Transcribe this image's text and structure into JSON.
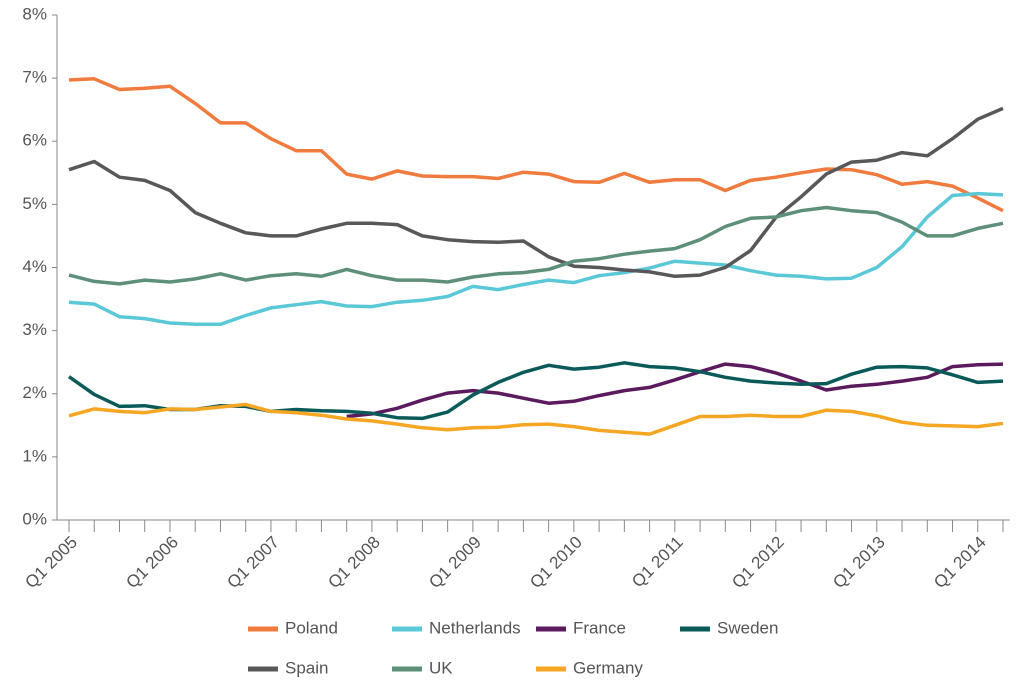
{
  "chart_data": {
    "type": "line",
    "categories": [
      "Q1 2005",
      null,
      null,
      null,
      "Q1 2006",
      null,
      null,
      null,
      "Q1 2007",
      null,
      null,
      null,
      "Q1 2008",
      null,
      null,
      null,
      "Q1 2009",
      null,
      null,
      null,
      "Q1 2010",
      null,
      null,
      null,
      "Q1 2011",
      null,
      null,
      null,
      "Q1 2012",
      null,
      null,
      null,
      "Q1 2013",
      null,
      null,
      null,
      "Q1 2014",
      null
    ],
    "ylim": [
      0,
      8
    ],
    "yticks": [
      {
        "value": 0,
        "label": "0%"
      },
      {
        "value": 1,
        "label": "1%"
      },
      {
        "value": 2,
        "label": "2%"
      },
      {
        "value": 3,
        "label": "3%"
      },
      {
        "value": 4,
        "label": "4%"
      },
      {
        "value": 5,
        "label": "5%"
      },
      {
        "value": 6,
        "label": "6%"
      },
      {
        "value": 7,
        "label": "7%"
      },
      {
        "value": 8,
        "label": "8%"
      }
    ],
    "grid": false,
    "legend": "bottom",
    "series": [
      {
        "name": "Poland",
        "color": "#f07b3f",
        "values": [
          6.97,
          6.99,
          6.82,
          6.84,
          6.87,
          6.6,
          6.29,
          6.29,
          6.04,
          5.85,
          5.85,
          5.48,
          5.4,
          5.53,
          5.45,
          5.44,
          5.44,
          5.41,
          5.51,
          5.48,
          5.36,
          5.35,
          5.49,
          5.35,
          5.39,
          5.39,
          5.22,
          5.38,
          5.43,
          5.5,
          5.56,
          5.55,
          5.47,
          5.32,
          5.36,
          5.29,
          5.1,
          4.9
        ]
      },
      {
        "name": "Netherlands",
        "color": "#5bc8d8",
        "values": [
          3.45,
          3.42,
          3.22,
          3.19,
          3.12,
          3.1,
          3.1,
          3.24,
          3.36,
          3.41,
          3.46,
          3.39,
          3.38,
          3.45,
          3.48,
          3.54,
          3.7,
          3.65,
          3.73,
          3.8,
          3.76,
          3.87,
          3.92,
          3.99,
          4.1,
          4.07,
          4.04,
          3.95,
          3.88,
          3.86,
          3.82,
          3.83,
          4.0,
          4.33,
          4.8,
          5.14,
          5.17,
          5.15
        ]
      },
      {
        "name": "France",
        "color": "#5b1a5e",
        "values": [
          null,
          null,
          null,
          null,
          null,
          null,
          null,
          null,
          null,
          null,
          null,
          1.64,
          1.68,
          1.77,
          1.9,
          2.01,
          2.05,
          2.01,
          1.93,
          1.85,
          1.88,
          1.97,
          2.05,
          2.1,
          2.22,
          2.35,
          2.47,
          2.43,
          2.33,
          2.2,
          2.06,
          2.12,
          2.15,
          2.2,
          2.26,
          2.43,
          2.46,
          2.47
        ]
      },
      {
        "name": "Sweden",
        "color": "#0a5a5a",
        "values": [
          2.27,
          1.99,
          1.8,
          1.81,
          1.75,
          1.75,
          1.81,
          1.8,
          1.72,
          1.75,
          1.73,
          1.72,
          1.69,
          1.62,
          1.61,
          1.71,
          1.98,
          2.18,
          2.34,
          2.45,
          2.39,
          2.42,
          2.49,
          2.43,
          2.41,
          2.35,
          2.26,
          2.2,
          2.17,
          2.15,
          2.16,
          2.31,
          2.42,
          2.43,
          2.41,
          2.3,
          2.18,
          2.2
        ]
      },
      {
        "name": "Spain",
        "color": "#58585a",
        "values": [
          5.55,
          5.68,
          5.43,
          5.38,
          5.22,
          4.87,
          4.7,
          4.55,
          4.5,
          4.5,
          4.61,
          4.7,
          4.7,
          4.68,
          4.5,
          4.44,
          4.41,
          4.4,
          4.42,
          4.17,
          4.02,
          4.0,
          3.96,
          3.93,
          3.86,
          3.88,
          4.0,
          4.27,
          4.79,
          5.12,
          5.48,
          5.67,
          5.7,
          5.82,
          5.77,
          6.04,
          6.35,
          6.52
        ]
      },
      {
        "name": "UK",
        "color": "#5e8f78",
        "values": [
          3.88,
          3.78,
          3.74,
          3.8,
          3.77,
          3.82,
          3.9,
          3.8,
          3.87,
          3.9,
          3.86,
          3.97,
          3.87,
          3.8,
          3.8,
          3.77,
          3.85,
          3.9,
          3.92,
          3.97,
          4.1,
          4.14,
          4.21,
          4.26,
          4.3,
          4.44,
          4.65,
          4.78,
          4.8,
          4.9,
          4.95,
          4.9,
          4.87,
          4.72,
          4.5,
          4.5,
          4.62,
          4.7
        ]
      },
      {
        "name": "Germany",
        "color": "#f5a623",
        "values": [
          1.65,
          1.76,
          1.72,
          1.7,
          1.76,
          1.75,
          1.79,
          1.83,
          1.72,
          1.7,
          1.66,
          1.6,
          1.57,
          1.52,
          1.46,
          1.43,
          1.46,
          1.47,
          1.51,
          1.52,
          1.48,
          1.42,
          1.39,
          1.36,
          1.5,
          1.64,
          1.64,
          1.66,
          1.64,
          1.64,
          1.74,
          1.72,
          1.65,
          1.55,
          1.5,
          1.49,
          1.48,
          1.53
        ]
      }
    ]
  }
}
